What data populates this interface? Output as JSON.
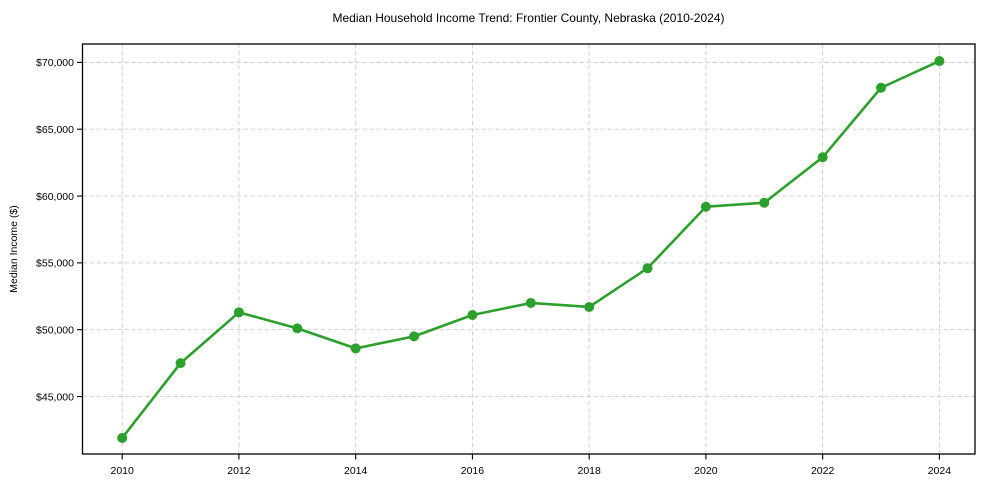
{
  "chart_data": {
    "type": "line",
    "title": "Median Household Income Trend: Frontier County, Nebraska (2010-2024)",
    "xlabel": "",
    "ylabel": "Median Income ($)",
    "x": [
      2010,
      2011,
      2012,
      2013,
      2014,
      2015,
      2016,
      2017,
      2018,
      2019,
      2020,
      2021,
      2022,
      2023,
      2024
    ],
    "series": [
      {
        "name": "Median Household Income",
        "values": [
          41900,
          47500,
          51300,
          50100,
          48600,
          49500,
          51100,
          52000,
          51700,
          54600,
          59200,
          59500,
          62900,
          68100,
          70100
        ],
        "color": "#2ca02c",
        "marker": "circle",
        "line_width": 2.6,
        "marker_radius": 5
      }
    ],
    "x_ticks": [
      2010,
      2012,
      2014,
      2016,
      2018,
      2020,
      2022,
      2024
    ],
    "x_tick_labels": [
      "2010",
      "2012",
      "2014",
      "2016",
      "2018",
      "2020",
      "2022",
      "2024"
    ],
    "y_ticks": [
      45000,
      50000,
      55000,
      60000,
      65000,
      70000
    ],
    "y_tick_labels": [
      "$45,000",
      "$50,000",
      "$55,000",
      "$60,000",
      "$65,000",
      "$70,000"
    ],
    "xlim": [
      2009.32,
      2024.61
    ],
    "ylim": [
      40700,
      71375
    ],
    "grid": true,
    "grid_style": "dashed",
    "grid_color": "#cccccc",
    "axis_color": "#000000",
    "background_color": "#ffffff",
    "legend_position": "none"
  }
}
